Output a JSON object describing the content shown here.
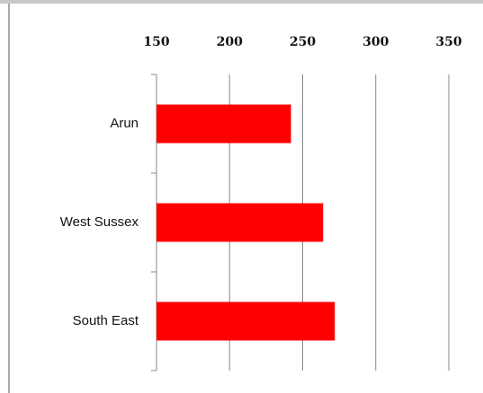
{
  "chart_data": {
    "type": "bar",
    "orientation": "horizontal",
    "categories": [
      "Arun",
      "West Sussex",
      "South East"
    ],
    "values": [
      242,
      264,
      272
    ],
    "color": "#ff0000",
    "xlim": [
      150,
      350
    ],
    "xticks": [
      150,
      200,
      250,
      300,
      350
    ],
    "grid": true
  }
}
